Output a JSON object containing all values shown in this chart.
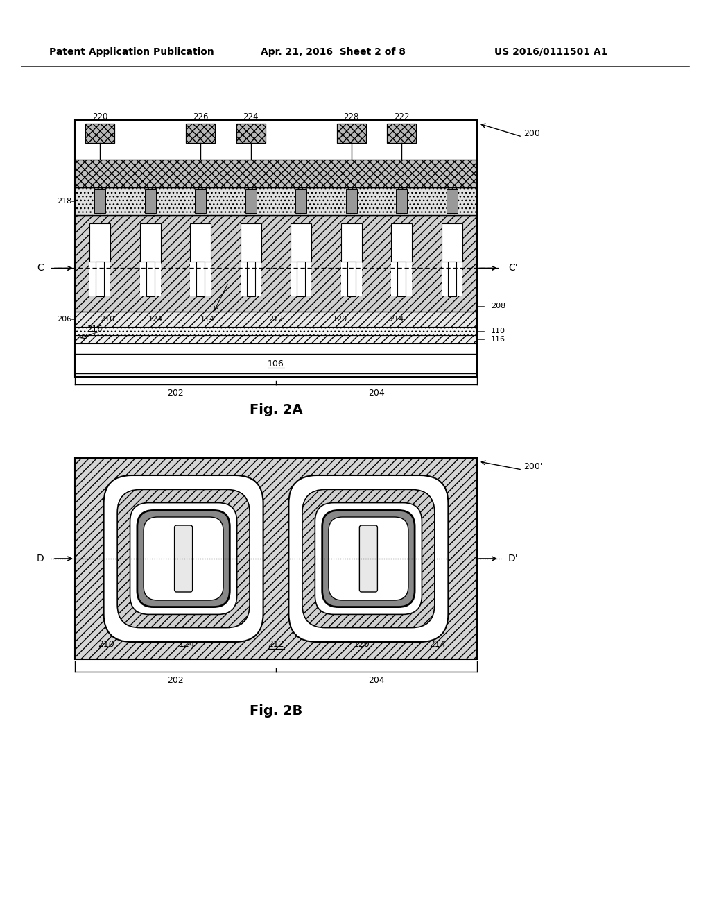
{
  "header_left": "Patent Application Publication",
  "header_center": "Apr. 21, 2016  Sheet 2 of 8",
  "header_right": "US 2016/0111501 A1",
  "fig2a_label": "Fig. 2A",
  "fig2b_label": "Fig. 2B",
  "bg_color": "#ffffff"
}
